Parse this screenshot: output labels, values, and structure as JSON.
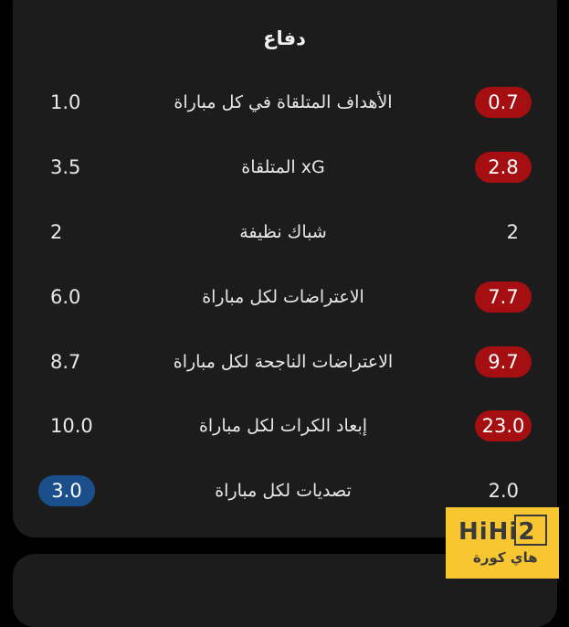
{
  "section_title": "دفاع",
  "rows": [
    {
      "label": "الأهداف المتلقاة في كل مباراة",
      "left": "1.0",
      "right": "0.7",
      "highlight": "right",
      "color": "red"
    },
    {
      "label": "xG المتلقاة",
      "left": "3.5",
      "right": "2.8",
      "highlight": "right",
      "color": "red"
    },
    {
      "label": "شباك نظيفة",
      "left": "2",
      "right": "2",
      "highlight": "none",
      "color": ""
    },
    {
      "label": "الاعتراضات لكل مباراة",
      "left": "6.0",
      "right": "7.7",
      "highlight": "right",
      "color": "red"
    },
    {
      "label": "الاعتراضات الناجحة لكل مباراة",
      "left": "8.7",
      "right": "9.7",
      "highlight": "right",
      "color": "red"
    },
    {
      "label": "إبعاد الكرات لكل مباراة",
      "left": "10.0",
      "right": "23.0",
      "highlight": "right",
      "color": "red"
    },
    {
      "label": "تصديات لكل مباراة",
      "left": "3.0",
      "right": "2.0",
      "highlight": "left",
      "color": "blue"
    }
  ],
  "colors": {
    "red": "#a50f12",
    "blue": "#1b4f8c",
    "card": "#1c1c1c"
  },
  "watermark": {
    "latin": "HiHi2",
    "arabic": "هاي كورة"
  }
}
